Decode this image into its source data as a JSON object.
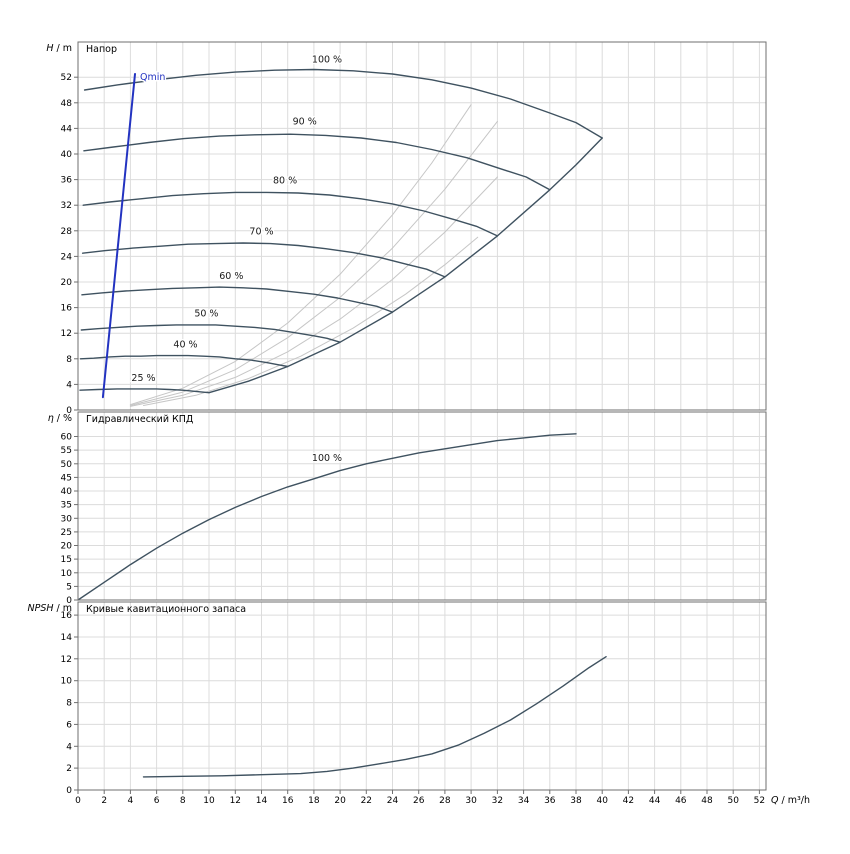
{
  "page": {
    "background": "#ffffff",
    "colors": {
      "curve": "#3f5260",
      "iso_line": "#c6c6c6",
      "qmin_line": "#2333c1",
      "grid": "#dcdcdc",
      "border": "#6f6f6f",
      "label": "#1a1a1a",
      "tick_text": "#000000"
    }
  },
  "chart_data": {
    "type": "line",
    "xlabel_var": "Q",
    "xlabel_unit": " / m³/h",
    "xlim": [
      0,
      52.5
    ],
    "xticks": [
      0,
      2,
      4,
      6,
      8,
      10,
      12,
      14,
      16,
      18,
      20,
      22,
      24,
      26,
      28,
      30,
      32,
      34,
      36,
      38,
      40,
      42,
      44,
      46,
      48,
      50,
      52
    ],
    "grid": true,
    "charts": [
      {
        "name": "head",
        "title": "Напор",
        "ylabel_var": "H",
        "ylabel_unit": " / m",
        "ylim": [
          0,
          57.5
        ],
        "yticks": [
          0,
          4,
          8,
          12,
          16,
          20,
          24,
          28,
          32,
          36,
          40,
          44,
          48,
          52
        ],
        "series": [
          {
            "name": "iso-efficiency-1",
            "role": "iso",
            "points": [
              [
                4,
                0.85
              ],
              [
                8,
                3.4
              ],
              [
                12,
                7.6
              ],
              [
                16,
                13.6
              ],
              [
                20,
                21.2
              ],
              [
                24,
                30.5
              ],
              [
                27,
                38.6
              ],
              [
                30,
                47.7
              ]
            ]
          },
          {
            "name": "iso-efficiency-2",
            "role": "iso",
            "points": [
              [
                4,
                0.7
              ],
              [
                8,
                2.8
              ],
              [
                12,
                6.3
              ],
              [
                16,
                11.3
              ],
              [
                20,
                17.6
              ],
              [
                24,
                25.3
              ],
              [
                28,
                34.5
              ],
              [
                32,
                45.1
              ]
            ]
          },
          {
            "name": "iso-efficiency-3",
            "role": "iso",
            "points": [
              [
                4,
                0.57
              ],
              [
                8,
                2.3
              ],
              [
                12,
                5.1
              ],
              [
                16,
                9.1
              ],
              [
                20,
                14.2
              ],
              [
                24,
                20.4
              ],
              [
                28,
                27.8
              ],
              [
                32,
                36.4
              ]
            ]
          },
          {
            "name": "iso-efficiency-4",
            "role": "iso",
            "points": [
              [
                5,
                0.7
              ],
              [
                9,
                2.3
              ],
              [
                13,
                4.9
              ],
              [
                17,
                8.4
              ],
              [
                21,
                12.8
              ],
              [
                25,
                18.1
              ],
              [
                28,
                22.7
              ],
              [
                30.5,
                27
              ]
            ]
          },
          {
            "name": "speed-100",
            "label": "100 %",
            "label_at": [
              19,
              54.3
            ],
            "role": "curve",
            "points": [
              [
                0.5,
                50
              ],
              [
                3,
                50.8
              ],
              [
                6,
                51.6
              ],
              [
                9,
                52.3
              ],
              [
                12,
                52.8
              ],
              [
                15,
                53.1
              ],
              [
                18,
                53.2
              ],
              [
                21,
                53
              ],
              [
                24,
                52.5
              ],
              [
                27,
                51.6
              ],
              [
                30,
                50.3
              ],
              [
                33,
                48.6
              ],
              [
                36,
                46.4
              ],
              [
                38,
                44.9
              ],
              [
                40,
                42.5
              ]
            ]
          },
          {
            "name": "speed-90",
            "label": "90 %",
            "label_at": [
              17.3,
              44.6
            ],
            "role": "curve",
            "points": [
              [
                0.45,
                40.5
              ],
              [
                2.7,
                41.1
              ],
              [
                5.4,
                41.8
              ],
              [
                8.1,
                42.4
              ],
              [
                10.8,
                42.8
              ],
              [
                13.5,
                43
              ],
              [
                16.2,
                43.1
              ],
              [
                18.9,
                42.9
              ],
              [
                21.6,
                42.5
              ],
              [
                24.3,
                41.8
              ],
              [
                27,
                40.7
              ],
              [
                29.7,
                39.4
              ],
              [
                32.4,
                37.6
              ],
              [
                34.2,
                36.4
              ],
              [
                36,
                34.4
              ]
            ]
          },
          {
            "name": "speed-80",
            "label": "80 %",
            "label_at": [
              15.8,
              35.4
            ],
            "role": "curve",
            "points": [
              [
                0.4,
                32
              ],
              [
                2.4,
                32.5
              ],
              [
                4.8,
                33
              ],
              [
                7.2,
                33.5
              ],
              [
                9.6,
                33.8
              ],
              [
                12,
                34
              ],
              [
                14.4,
                34
              ],
              [
                16.8,
                33.9
              ],
              [
                19.2,
                33.6
              ],
              [
                21.6,
                33
              ],
              [
                24,
                32.2
              ],
              [
                26.4,
                31.1
              ],
              [
                28.8,
                29.7
              ],
              [
                30.4,
                28.7
              ],
              [
                32,
                27.2
              ]
            ]
          },
          {
            "name": "speed-70",
            "label": "70 %",
            "label_at": [
              14,
              27.4
            ],
            "role": "curve",
            "points": [
              [
                0.35,
                24.5
              ],
              [
                2.1,
                24.9
              ],
              [
                4.2,
                25.3
              ],
              [
                6.3,
                25.6
              ],
              [
                8.4,
                25.9
              ],
              [
                10.5,
                26
              ],
              [
                12.6,
                26.1
              ],
              [
                14.7,
                26
              ],
              [
                16.8,
                25.7
              ],
              [
                18.9,
                25.2
              ],
              [
                21,
                24.6
              ],
              [
                23.1,
                23.8
              ],
              [
                25.2,
                22.7
              ],
              [
                26.6,
                22
              ],
              [
                28,
                20.8
              ]
            ]
          },
          {
            "name": "speed-60",
            "label": "60 %",
            "label_at": [
              11.7,
              20.5
            ],
            "role": "curve",
            "points": [
              [
                0.3,
                18
              ],
              [
                1.8,
                18.3
              ],
              [
                3.6,
                18.6
              ],
              [
                5.4,
                18.8
              ],
              [
                7.2,
                19
              ],
              [
                9,
                19.1
              ],
              [
                10.8,
                19.2
              ],
              [
                12.6,
                19.1
              ],
              [
                14.4,
                18.9
              ],
              [
                16.2,
                18.5
              ],
              [
                18,
                18.1
              ],
              [
                19.8,
                17.5
              ],
              [
                21.6,
                16.7
              ],
              [
                22.8,
                16.2
              ],
              [
                24,
                15.3
              ]
            ]
          },
          {
            "name": "speed-50",
            "label": "50 %",
            "label_at": [
              9.8,
              14.6
            ],
            "role": "curve",
            "points": [
              [
                0.25,
                12.5
              ],
              [
                1.5,
                12.7
              ],
              [
                3,
                12.9
              ],
              [
                4.5,
                13.1
              ],
              [
                6,
                13.2
              ],
              [
                7.5,
                13.3
              ],
              [
                9,
                13.3
              ],
              [
                10.5,
                13.3
              ],
              [
                12,
                13.1
              ],
              [
                13.5,
                12.9
              ],
              [
                15,
                12.6
              ],
              [
                16.5,
                12.1
              ],
              [
                18,
                11.6
              ],
              [
                19,
                11.2
              ],
              [
                20,
                10.6
              ]
            ]
          },
          {
            "name": "speed-40",
            "label": "40 %",
            "label_at": [
              8.2,
              9.8
            ],
            "role": "curve",
            "points": [
              [
                0.2,
                8
              ],
              [
                1.2,
                8.1
              ],
              [
                2.4,
                8.3
              ],
              [
                3.6,
                8.4
              ],
              [
                4.8,
                8.4
              ],
              [
                6,
                8.5
              ],
              [
                7.2,
                8.5
              ],
              [
                8.4,
                8.5
              ],
              [
                9.6,
                8.4
              ],
              [
                10.8,
                8.3
              ],
              [
                12,
                8
              ],
              [
                13.2,
                7.8
              ],
              [
                14.4,
                7.4
              ],
              [
                15.2,
                7.1
              ],
              [
                16,
                6.8
              ]
            ]
          },
          {
            "name": "speed-25",
            "label": "25 %",
            "label_at": [
              5,
              4.5
            ],
            "role": "curve",
            "points": [
              [
                0.15,
                3.1
              ],
              [
                1.5,
                3.2
              ],
              [
                3,
                3.3
              ],
              [
                4.5,
                3.3
              ],
              [
                6,
                3.3
              ],
              [
                7,
                3.2
              ],
              [
                8,
                3.1
              ],
              [
                9,
                2.9
              ],
              [
                10,
                2.7
              ]
            ]
          },
          {
            "name": "max-flow-envelope",
            "role": "curve",
            "points": [
              [
                10,
                2.7
              ],
              [
                13,
                4.5
              ],
              [
                16,
                6.8
              ],
              [
                20,
                10.6
              ],
              [
                24,
                15.3
              ],
              [
                28,
                20.8
              ],
              [
                32,
                27.2
              ],
              [
                36,
                34.4
              ],
              [
                38,
                38.3
              ],
              [
                40,
                42.5
              ]
            ]
          },
          {
            "name": "qmin",
            "label": "Qmin",
            "label_at": [
              5.7,
              51.6
            ],
            "role": "qmin",
            "points": [
              [
                1.9,
                2
              ],
              [
                4.35,
                52.5
              ]
            ]
          }
        ]
      },
      {
        "name": "efficiency",
        "title": "Гидравлический КПД",
        "ylabel_var": "η",
        "ylabel_unit": " / %",
        "ylim": [
          0,
          69
        ],
        "yticks": [
          0,
          5,
          10,
          15,
          20,
          25,
          30,
          35,
          40,
          45,
          50,
          55,
          60
        ],
        "series": [
          {
            "name": "efficiency-100",
            "label": "100 %",
            "label_at": [
              19,
              51
            ],
            "role": "curve",
            "points": [
              [
                0,
                0
              ],
              [
                2,
                6.5
              ],
              [
                4,
                13
              ],
              [
                6,
                19
              ],
              [
                8,
                24.5
              ],
              [
                10,
                29.5
              ],
              [
                12,
                34
              ],
              [
                14,
                38
              ],
              [
                16,
                41.5
              ],
              [
                18,
                44.5
              ],
              [
                20,
                47.5
              ],
              [
                22,
                50
              ],
              [
                24,
                52
              ],
              [
                26,
                54
              ],
              [
                28,
                55.5
              ],
              [
                30,
                57
              ],
              [
                32,
                58.5
              ],
              [
                34,
                59.5
              ],
              [
                36,
                60.5
              ],
              [
                38,
                61
              ]
            ]
          }
        ]
      },
      {
        "name": "npsh",
        "title": "Кривые кавитационного запаса",
        "ylabel_var": "NPSH",
        "ylabel_unit": " / m",
        "ylim": [
          0,
          17.2
        ],
        "yticks": [
          0,
          2,
          4,
          6,
          8,
          10,
          12,
          14,
          16
        ],
        "series": [
          {
            "name": "npsh-curve",
            "role": "curve",
            "points": [
              [
                5,
                1.2
              ],
              [
                8,
                1.25
              ],
              [
                11,
                1.3
              ],
              [
                14,
                1.4
              ],
              [
                17,
                1.5
              ],
              [
                19,
                1.7
              ],
              [
                21,
                2
              ],
              [
                23,
                2.4
              ],
              [
                25,
                2.8
              ],
              [
                27,
                3.3
              ],
              [
                29,
                4.1
              ],
              [
                31,
                5.2
              ],
              [
                33,
                6.4
              ],
              [
                35,
                7.9
              ],
              [
                37,
                9.5
              ],
              [
                39,
                11.2
              ],
              [
                40.3,
                12.2
              ]
            ]
          }
        ]
      }
    ]
  }
}
